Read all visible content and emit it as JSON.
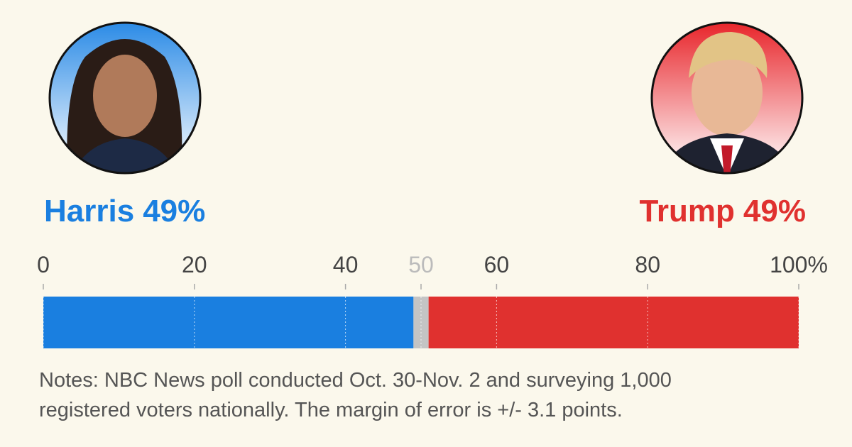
{
  "chart_data": {
    "type": "stacked-bar",
    "series": [
      {
        "name": "Harris",
        "color": "#1a7fe0",
        "values": [
          49
        ],
        "value_labels": [
          "49%"
        ]
      },
      {
        "color": "#c4c4c4",
        "values": [
          2
        ]
      },
      {
        "name": "Trump",
        "color": "#e0312f",
        "values": [
          49
        ],
        "value_labels": [
          "49%"
        ]
      }
    ],
    "xlim": [
      0,
      100
    ],
    "xticks": [
      0,
      20,
      40,
      60,
      80,
      {
        "value": 100,
        "label": "100%"
      }
    ],
    "midline": 50,
    "grid": true,
    "notes": [
      "Notes: NBC News poll conducted Oct. 30-Nov. 2 and surveying 1,000",
      "registered voters nationally. The margin of error is +/- 3.1 points."
    ]
  }
}
